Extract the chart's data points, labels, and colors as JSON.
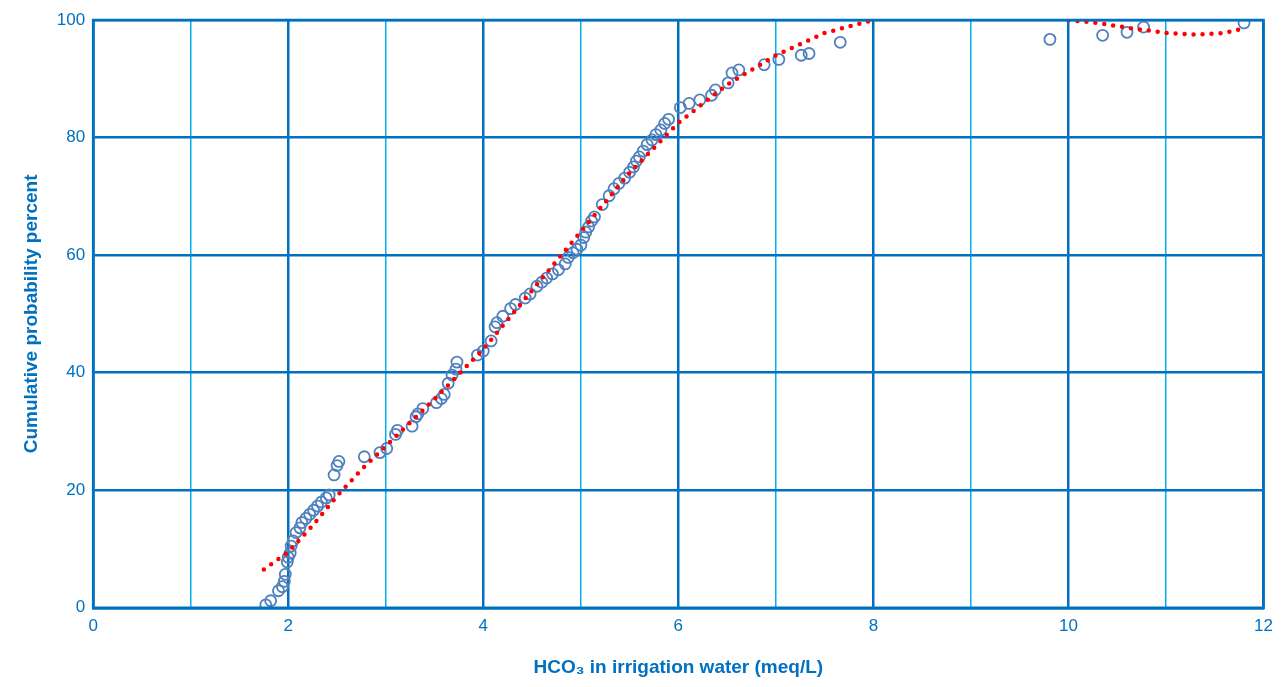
{
  "chart_data": {
    "type": "scatter",
    "xlabel": "HCO₃ in irrigation water (meq/L)",
    "ylabel": "Cumulative probability percent",
    "xlim": [
      0,
      12
    ],
    "xticks": [
      0,
      {
        "value": 1,
        "label": null
      },
      2,
      {
        "value": 3,
        "label": null
      },
      4,
      {
        "value": 5,
        "label": null
      },
      6,
      {
        "value": 7,
        "label": null
      },
      8,
      {
        "value": 9,
        "label": null
      },
      10,
      {
        "value": 11,
        "label": null
      },
      12
    ],
    "ylim": [
      0,
      100
    ],
    "yticks": [
      0,
      20,
      40,
      60,
      80,
      100
    ],
    "grid": true,
    "series": [
      {
        "marker": "circle",
        "color": "#4f81bd",
        "x": [
          1.77,
          1.82,
          1.9,
          1.94,
          1.96,
          1.97,
          1.99,
          2.0,
          2.02,
          2.03,
          2.05,
          2.08,
          2.12,
          2.14,
          2.18,
          2.22,
          2.26,
          2.3,
          2.34,
          2.39,
          2.42,
          2.47,
          2.5,
          2.52,
          2.78,
          2.94,
          3.01,
          3.1,
          3.12,
          3.27,
          3.31,
          3.33,
          3.38,
          3.52,
          3.57,
          3.6,
          3.64,
          3.68,
          3.72,
          3.73,
          3.94,
          4.0,
          4.08,
          4.12,
          4.14,
          4.2,
          4.28,
          4.33,
          4.43,
          4.48,
          4.55,
          4.6,
          4.65,
          4.71,
          4.77,
          4.84,
          4.87,
          4.92,
          4.96,
          5.0,
          5.03,
          5.05,
          5.08,
          5.11,
          5.14,
          5.22,
          5.29,
          5.34,
          5.39,
          5.45,
          5.5,
          5.54,
          5.57,
          5.6,
          5.64,
          5.68,
          5.73,
          5.77,
          5.82,
          5.86,
          5.9,
          6.02,
          6.11,
          6.22,
          6.34,
          6.38,
          6.51,
          6.55,
          6.62,
          6.88,
          7.03,
          7.26,
          7.34,
          7.66,
          9.81,
          10.35,
          10.6,
          10.77,
          11.8
        ],
        "values": [
          0.5,
          1.2,
          2.9,
          3.6,
          4.5,
          5.7,
          7.8,
          8.6,
          9.3,
          10.5,
          11.4,
          12.8,
          13.6,
          14.5,
          15.2,
          15.9,
          16.6,
          17.3,
          18.0,
          18.7,
          19.2,
          22.6,
          24.2,
          24.9,
          25.7,
          26.4,
          27.1,
          29.5,
          30.2,
          30.9,
          32.5,
          33.0,
          33.9,
          34.9,
          35.6,
          36.3,
          38.2,
          39.6,
          40.6,
          41.8,
          43.0,
          43.7,
          45.4,
          47.8,
          48.5,
          49.6,
          50.9,
          51.6,
          52.7,
          53.4,
          54.7,
          55.4,
          56.1,
          56.8,
          57.5,
          58.5,
          59.6,
          60.4,
          61.0,
          61.7,
          63.0,
          63.9,
          64.8,
          65.8,
          66.5,
          68.6,
          70.1,
          71.3,
          72.2,
          73.1,
          74.1,
          75.0,
          76.0,
          76.7,
          77.7,
          78.8,
          79.6,
          80.5,
          81.3,
          82.4,
          83.1,
          85.1,
          85.8,
          86.4,
          87.2,
          88.1,
          89.3,
          91.0,
          91.5,
          92.4,
          93.3,
          94.0,
          94.3,
          96.2,
          96.7,
          97.4,
          97.9,
          98.8,
          99.5
        ]
      },
      {
        "type": "line",
        "marker": "none",
        "line_style": "dotted",
        "color": "#ff0000",
        "x": [
          1.75,
          2.0,
          2.25,
          2.5,
          2.75,
          3.0,
          3.5,
          4.0,
          4.5,
          5.0,
          5.5,
          6.0,
          6.5,
          7.0,
          7.5,
          8.0,
          9.0,
          10.0,
          10.3,
          10.6,
          11.0,
          11.3,
          11.6,
          11.8
        ],
        "values": [
          6.5,
          9.5,
          14,
          19,
          23.5,
          27.5,
          35.5,
          44,
          54,
          64,
          74,
          82.5,
          89,
          94,
          97.8,
          100,
          null,
          100,
          99.5,
          98.7,
          97.8,
          97.5,
          97.8,
          98.6
        ]
      }
    ]
  }
}
